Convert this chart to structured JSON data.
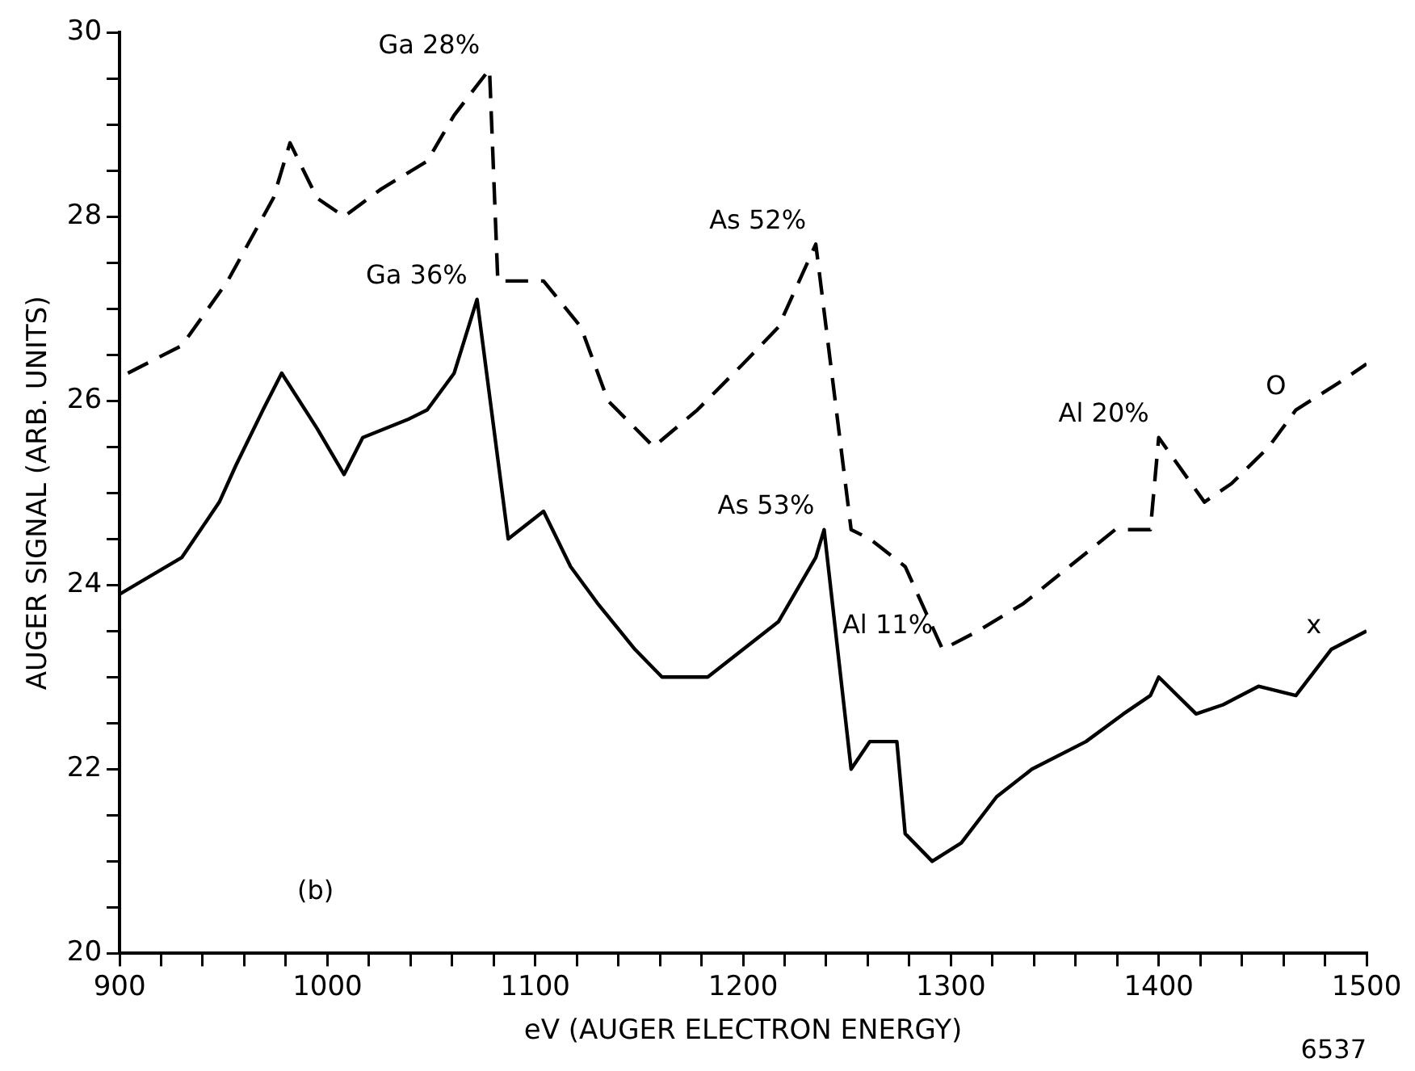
{
  "chart_data": {
    "type": "line",
    "xlabel": "eV (AUGER ELECTRON ENERGY)",
    "ylabel": "AUGER SIGNAL (ARB. UNITS)",
    "xlim": [
      900,
      1500
    ],
    "ylim": [
      20,
      30
    ],
    "xticks": [
      900,
      {
        "value": 920,
        "label": null
      },
      {
        "value": 940,
        "label": null
      },
      {
        "value": 960,
        "label": null
      },
      {
        "value": 980,
        "label": null
      },
      1000,
      {
        "value": 1020,
        "label": null
      },
      {
        "value": 1040,
        "label": null
      },
      {
        "value": 1060,
        "label": null
      },
      {
        "value": 1080,
        "label": null
      },
      1100,
      {
        "value": 1120,
        "label": null
      },
      {
        "value": 1140,
        "label": null
      },
      {
        "value": 1160,
        "label": null
      },
      {
        "value": 1180,
        "label": null
      },
      1200,
      {
        "value": 1220,
        "label": null
      },
      {
        "value": 1240,
        "label": null
      },
      {
        "value": 1260,
        "label": null
      },
      {
        "value": 1280,
        "label": null
      },
      1300,
      {
        "value": 1320,
        "label": null
      },
      {
        "value": 1340,
        "label": null
      },
      {
        "value": 1360,
        "label": null
      },
      {
        "value": 1380,
        "label": null
      },
      1400,
      {
        "value": 1420,
        "label": null
      },
      {
        "value": 1440,
        "label": null
      },
      {
        "value": 1460,
        "label": null
      },
      {
        "value": 1480,
        "label": null
      },
      1500
    ],
    "yticks": [
      20,
      {
        "value": 20.5,
        "label": null
      },
      {
        "value": 21,
        "label": null
      },
      {
        "value": 21.5,
        "label": null
      },
      22,
      {
        "value": 22.5,
        "label": null
      },
      {
        "value": 23,
        "label": null
      },
      {
        "value": 23.5,
        "label": null
      },
      24,
      {
        "value": 24.5,
        "label": null
      },
      {
        "value": 25,
        "label": null
      },
      {
        "value": 25.5,
        "label": null
      },
      26,
      {
        "value": 26.5,
        "label": null
      },
      {
        "value": 27,
        "label": null
      },
      {
        "value": 27.5,
        "label": null
      },
      28,
      {
        "value": 28.5,
        "label": null
      },
      {
        "value": 29,
        "label": null
      },
      {
        "value": 29.5,
        "label": null
      },
      30
    ],
    "grid": false,
    "legend": false,
    "marker": "none",
    "series": [
      {
        "color": "#000000",
        "line_style": "dashed",
        "x": [
          904,
          930,
          952,
          974,
          982,
          995,
          1008,
          1026,
          1048,
          1061,
          1078,
          1082,
          1104,
          1122,
          1135,
          1157,
          1178,
          1200,
          1217,
          1235,
          1252,
          1261,
          1278,
          1296,
          1313,
          1335,
          1357,
          1379,
          1396,
          1400,
          1422,
          1435,
          1453,
          1466,
          1487,
          1500
        ],
        "values": [
          26.3,
          26.6,
          27.3,
          28.2,
          28.8,
          28.2,
          28.0,
          28.3,
          28.6,
          29.1,
          29.6,
          27.3,
          27.3,
          26.8,
          26.0,
          25.5,
          25.9,
          26.4,
          26.8,
          27.7,
          24.6,
          24.5,
          24.2,
          23.3,
          23.5,
          23.8,
          24.2,
          24.6,
          24.6,
          25.6,
          24.9,
          25.1,
          25.5,
          25.9,
          26.2,
          26.4
        ]
      },
      {
        "color": "#000000",
        "line_style": "solid",
        "x": [
          900,
          930,
          948,
          956,
          969,
          978,
          995,
          1008,
          1017,
          1039,
          1048,
          1061,
          1072,
          1087,
          1104,
          1117,
          1130,
          1148,
          1161,
          1183,
          1200,
          1217,
          1235,
          1239,
          1252,
          1261,
          1274,
          1278,
          1291,
          1305,
          1322,
          1339,
          1365,
          1383,
          1396,
          1400,
          1418,
          1431,
          1448,
          1466,
          1483,
          1500
        ],
        "values": [
          23.9,
          24.3,
          24.9,
          25.3,
          25.9,
          26.3,
          25.7,
          25.2,
          25.6,
          25.8,
          25.9,
          26.3,
          27.1,
          24.5,
          24.8,
          24.2,
          23.8,
          23.3,
          23.0,
          23.0,
          23.3,
          23.6,
          24.3,
          24.6,
          22.0,
          22.3,
          22.3,
          21.3,
          21.0,
          21.2,
          21.7,
          22.0,
          22.3,
          22.6,
          22.8,
          23.0,
          22.6,
          22.7,
          22.9,
          22.8,
          23.3,
          23.5
        ]
      }
    ],
    "annotations": [
      {
        "text": "Ga 28%",
        "x": 1078,
        "y": 29.6
      },
      {
        "text": "Ga 36%",
        "x": 1072,
        "y": 27.1
      },
      {
        "text": "As 52%",
        "x": 1235,
        "y": 27.7
      },
      {
        "text": "As 53%",
        "x": 1239,
        "y": 24.6
      },
      {
        "text": "Al 20%",
        "x": 1400,
        "y": 25.6
      },
      {
        "text": "Al 11%",
        "x": 1296,
        "y": 23.3
      },
      {
        "text": "O",
        "x": 1466,
        "y": 25.9
      },
      {
        "text": "x",
        "x": 1483,
        "y": 23.3
      },
      "(b)",
      "6537"
    ]
  }
}
